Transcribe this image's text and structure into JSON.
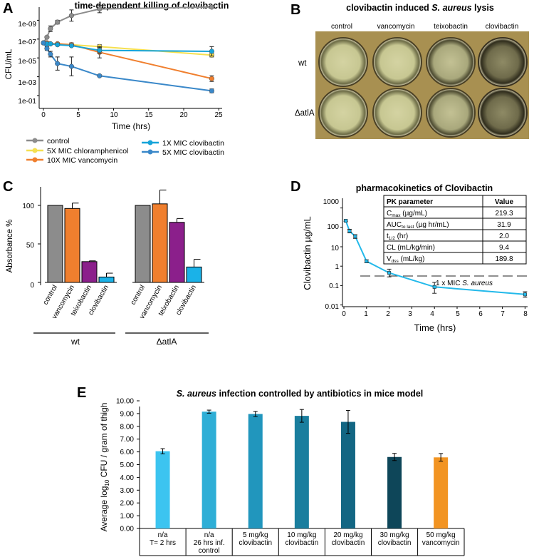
{
  "panel_letters": {
    "a": "A",
    "b": "B",
    "c": "C",
    "d": "D",
    "e": "E"
  },
  "colors": {
    "control": "#8c8c8c",
    "chloramphenicol": "#f5e050",
    "vancomycin": "#f07f2e",
    "clov1x": "#16a4d9",
    "clov5x": "#3a88c9",
    "teixobactin": "#8b1f8b",
    "clovibactin_bar": "#1ab2e8",
    "pk_line": "#23b9ea",
    "mouse": [
      "#3cc4f0",
      "#2eaed6",
      "#2196bd",
      "#1a7e9e",
      "#136683",
      "#0e4659",
      "#f29422"
    ]
  },
  "chart_data": [
    {
      "id": "A",
      "type": "line",
      "title": "time-dependent killing of clovibactin",
      "xlabel": "Time (hrs)",
      "ylabel": "CFU/mL",
      "xlim": [
        0,
        25
      ],
      "xticks": [
        "0",
        "5",
        "10",
        "15",
        "20",
        "25"
      ],
      "yticks": [
        "1e-09",
        "1e-07",
        "1e-05",
        "1e-03",
        "1e-01"
      ],
      "series": [
        {
          "name": "control",
          "color_key": "control",
          "x": [
            0,
            0.5,
            1,
            2,
            4,
            8,
            24
          ],
          "y": [
            6.6,
            7.2,
            8.1,
            8.8,
            9.5,
            10.2,
            10.4
          ],
          "err": [
            0,
            0.1,
            0.3,
            0.2,
            0.6,
            0.4,
            0.05
          ]
        },
        {
          "name": "5X MIC chloramphenicol",
          "color_key": "chloramphenicol",
          "x": [
            0,
            0.5,
            1,
            2,
            4,
            8,
            24
          ],
          "y": [
            6.6,
            6.6,
            6.5,
            6.5,
            6.4,
            6.2,
            5.3
          ],
          "err": [
            0,
            0,
            0,
            0.1,
            0.1,
            0.2,
            0.2
          ]
        },
        {
          "name": "10X MIC vancomycin",
          "color_key": "vancomycin",
          "x": [
            0,
            0.5,
            1,
            2,
            4,
            8,
            24
          ],
          "y": [
            6.6,
            6.6,
            6.5,
            6.5,
            6.4,
            5.6,
            2.8
          ],
          "err": [
            0,
            0,
            0.1,
            0.1,
            0.2,
            0.6,
            0.3
          ]
        },
        {
          "name": "1X MIC clovibactin",
          "color_key": "clov1x",
          "x": [
            0,
            0.5,
            1,
            2,
            4,
            8,
            24
          ],
          "y": [
            6.6,
            6.5,
            6.5,
            6.4,
            6.3,
            5.8,
            5.7
          ],
          "err": [
            0,
            0.1,
            0.1,
            0.1,
            0.1,
            0.3,
            0.5
          ]
        },
        {
          "name": "5X MIC clovibactin",
          "color_key": "clov5x",
          "x": [
            0,
            0.5,
            1,
            2,
            4,
            8,
            24
          ],
          "y": [
            6.6,
            6.0,
            5.4,
            4.4,
            4.1,
            3.1,
            1.5
          ],
          "err": [
            0,
            0.2,
            0.3,
            0.7,
            1.0,
            0.1,
            0.2
          ]
        }
      ]
    },
    {
      "id": "C",
      "type": "bar",
      "ylabel": "Absorbance %",
      "ylim": [
        0,
        125
      ],
      "yticks": [
        "0",
        "50",
        "100"
      ],
      "categories": [
        "control",
        "vancomycin",
        "teixobactin",
        "clovibactin"
      ],
      "groups": [
        {
          "name": "wt",
          "values": [
            100,
            96,
            27,
            7
          ],
          "err": [
            0,
            7,
            1,
            5
          ]
        },
        {
          "name": "ΔatlA",
          "values": [
            100,
            102,
            78,
            20
          ],
          "err": [
            0,
            18,
            5,
            10
          ]
        }
      ],
      "color_keys": [
        "control",
        "vancomycin",
        "teixobactin",
        "clovibactin_bar"
      ]
    },
    {
      "id": "D",
      "type": "line",
      "title": "pharmacokinetics of Clovibactin",
      "xlabel": "Time (hrs)",
      "ylabel": "Clovibactin µg/mL",
      "xlim": [
        0,
        8
      ],
      "xticks": [
        "0",
        "1",
        "2",
        "3",
        "4",
        "5",
        "6",
        "7",
        "8"
      ],
      "yticks": [
        "0.01",
        "0.1",
        "1",
        "10",
        "100",
        "1000"
      ],
      "series": [
        {
          "name": "Clovibactin",
          "color_key": "pk_line",
          "x": [
            0.083,
            0.25,
            0.5,
            1,
            2,
            4,
            8
          ],
          "y": [
            219.3,
            65,
            34,
            1.8,
            0.45,
            0.085,
            0.035
          ],
          "lo": [
            200,
            52,
            27,
            1.5,
            0.28,
            0.04,
            0.025
          ],
          "hi": [
            235,
            80,
            42,
            2.1,
            0.7,
            0.145,
            0.048
          ]
        }
      ],
      "reference_line": {
        "y": 1,
        "label": "1 x MIC",
        "label_italic": "S. aureus"
      },
      "table": {
        "headers": [
          "PK parameter",
          "Value"
        ],
        "rows": [
          {
            "param": "C",
            "sub": "max",
            "unit": " (µg/mL)",
            "value": "219.3"
          },
          {
            "param": "AUC",
            "sub": "to last",
            "unit": " (µg hr/mL)",
            "value": "31.9"
          },
          {
            "param": "t",
            "sub": "1/2",
            "unit": " (hr)",
            "value": "2.0"
          },
          {
            "param": "CL",
            "sub": "",
            "unit": " (mL/kg/min)",
            "value": "9.4"
          },
          {
            "param": "V",
            "sub": "dss",
            "unit": " (mL/kg)",
            "value": "189.8"
          }
        ]
      }
    },
    {
      "id": "E",
      "type": "bar",
      "title_italic": "S. aureus",
      "title_rest": " infection controlled by antibiotics in mice model",
      "ylabel_pre": "Average log",
      "ylabel_sub": "10",
      "ylabel_post": " CFU / gram of thigh",
      "ylim": [
        0,
        10
      ],
      "yticks": [
        "0.00",
        "1.00",
        "2.00",
        "3.00",
        "4.00",
        "5.00",
        "6.00",
        "7.00",
        "8.00",
        "9.00",
        "10.00"
      ],
      "categories": [
        [
          "n/a",
          "T= 2 hrs"
        ],
        [
          "n/a",
          "26 hrs inf.",
          "control"
        ],
        [
          "5 mg/kg",
          "clovibactin"
        ],
        [
          "10 mg/kg",
          "clovibactin"
        ],
        [
          "20 mg/kg",
          "clovibactin"
        ],
        [
          "30 mg/kg",
          "clovibactin"
        ],
        [
          "50 mg/kg",
          "vancomycin"
        ]
      ],
      "values": [
        6.05,
        9.15,
        8.97,
        8.82,
        8.35,
        5.6,
        5.57
      ],
      "err": [
        0.2,
        0.12,
        0.2,
        0.5,
        0.9,
        0.28,
        0.3
      ]
    }
  ],
  "panel_b": {
    "title_pre": "clovibactin induced ",
    "title_italic": "S. aureus",
    "title_post": " lysis",
    "columns": [
      "control",
      "vancomycin",
      "teixobactin",
      "clovibactin"
    ],
    "rows": [
      "wt",
      "ΔatlA"
    ]
  }
}
